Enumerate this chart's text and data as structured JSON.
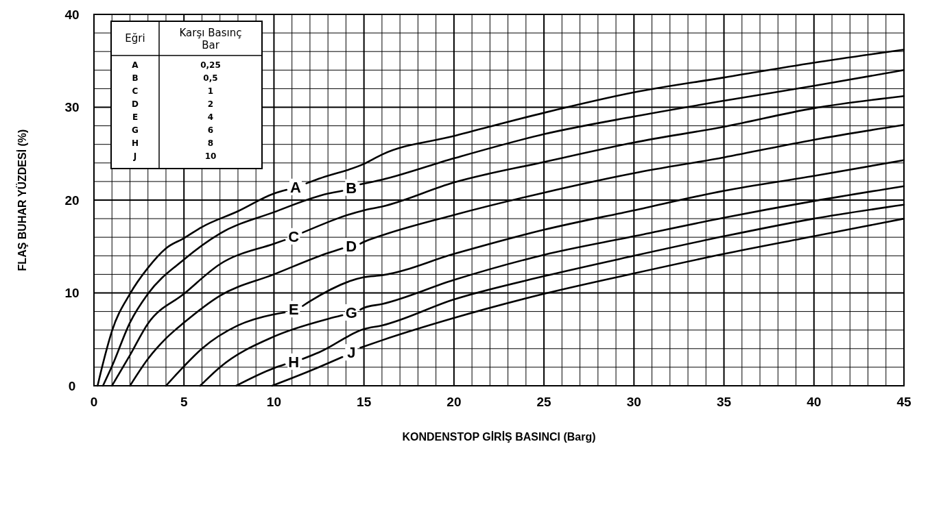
{
  "chart_data": {
    "type": "line",
    "xlabel": "KONDENSTOP GİRİŞ BASINCI  (Barg)",
    "ylabel": "FLAŞ BUHAR  YÜZDESİ  (%)",
    "annotations": [
      "Eğri",
      "Karşı Basınç Bar",
      "A",
      "0,25",
      "B",
      "0,5",
      "C",
      "1",
      "D",
      "2",
      "E",
      "4",
      "G",
      "6",
      "H",
      "8",
      "J",
      "10"
    ],
    "xlim": [
      0,
      45
    ],
    "ylim": [
      0,
      40
    ],
    "xticks": [
      0,
      {
        "value": 1,
        "label": null
      },
      {
        "value": 2,
        "label": null
      },
      {
        "value": 3,
        "label": null
      },
      {
        "value": 4,
        "label": null
      },
      5,
      {
        "value": 6,
        "label": null
      },
      {
        "value": 7,
        "label": null
      },
      {
        "value": 8,
        "label": null
      },
      {
        "value": 9,
        "label": null
      },
      10,
      {
        "value": 11,
        "label": null
      },
      {
        "value": 12,
        "label": null
      },
      {
        "value": 13,
        "label": null
      },
      {
        "value": 14,
        "label": null
      },
      15,
      {
        "value": 16,
        "label": null
      },
      {
        "value": 17,
        "label": null
      },
      {
        "value": 18,
        "label": null
      },
      {
        "value": 19,
        "label": null
      },
      20,
      {
        "value": 21,
        "label": null
      },
      {
        "value": 22,
        "label": null
      },
      {
        "value": 23,
        "label": null
      },
      {
        "value": 24,
        "label": null
      },
      25,
      {
        "value": 26,
        "label": null
      },
      {
        "value": 27,
        "label": null
      },
      {
        "value": 28,
        "label": null
      },
      {
        "value": 29,
        "label": null
      },
      30,
      {
        "value": 31,
        "label": null
      },
      {
        "value": 32,
        "label": null
      },
      {
        "value": 33,
        "label": null
      },
      {
        "value": 34,
        "label": null
      },
      35,
      {
        "value": 36,
        "label": null
      },
      {
        "value": 37,
        "label": null
      },
      {
        "value": 38,
        "label": null
      },
      {
        "value": 39,
        "label": null
      },
      40,
      {
        "value": 41,
        "label": null
      },
      {
        "value": 42,
        "label": null
      },
      {
        "value": 43,
        "label": null
      },
      {
        "value": 44,
        "label": null
      },
      45
    ],
    "yticks": [
      0,
      {
        "value": 2,
        "label": null
      },
      {
        "value": 4,
        "label": null
      },
      {
        "value": 6,
        "label": null
      },
      {
        "value": 8,
        "label": null
      },
      10,
      {
        "value": 12,
        "label": null
      },
      {
        "value": 14,
        "label": null
      },
      {
        "value": 16,
        "label": null
      },
      {
        "value": 18,
        "label": null
      },
      20,
      {
        "value": 22,
        "label": null
      },
      {
        "value": 24,
        "label": null
      },
      {
        "value": 26,
        "label": null
      },
      {
        "value": 28,
        "label": null
      },
      30,
      {
        "value": 32,
        "label": null
      },
      {
        "value": 34,
        "label": null
      },
      {
        "value": 36,
        "label": null
      },
      {
        "value": 38,
        "label": null
      },
      40
    ],
    "grid": true,
    "marker": "none",
    "line_style": "solid",
    "series": [
      {
        "name": "A",
        "color": "#000000",
        "x": [
          0.2,
          0.5,
          1,
          2,
          3,
          4,
          5,
          6,
          8,
          10,
          10.7,
          11.2,
          11.8,
          12.5,
          15,
          16,
          20,
          25,
          30,
          35,
          40,
          45
        ],
        "values": [
          0,
          2.4,
          5.9,
          9.9,
          12.7,
          14.8,
          15.9,
          17.1,
          18.8,
          20.7,
          21.1,
          null,
          21.8,
          22.3,
          23.9,
          24.9,
          26.9,
          29.4,
          31.6,
          33.2,
          34.8,
          36.2
        ]
      },
      {
        "name": "B",
        "color": "#000000",
        "x": [
          0.5,
          1,
          2,
          3,
          5,
          7,
          10,
          13,
          13.8,
          14.3,
          14.8,
          16,
          20,
          25,
          30,
          35,
          40,
          45
        ],
        "values": [
          0,
          2.1,
          6.8,
          9.9,
          13.6,
          16.4,
          18.7,
          20.7,
          21,
          null,
          21.7,
          22.2,
          24.5,
          27.1,
          29,
          30.7,
          32.3,
          34
        ]
      },
      {
        "name": "C",
        "color": "#000000",
        "x": [
          1,
          2,
          3,
          5,
          7,
          10,
          10.6,
          11.1,
          11.6,
          15,
          16,
          20,
          25,
          30,
          35,
          40,
          45
        ],
        "values": [
          0,
          3.3,
          6.7,
          9.9,
          13.1,
          15.3,
          15.7,
          null,
          16.5,
          18.9,
          19.3,
          21.9,
          24.1,
          26.2,
          27.9,
          29.9,
          31.2
        ]
      },
      {
        "name": "D",
        "color": "#000000",
        "x": [
          2,
          3,
          4,
          5,
          7,
          10,
          13,
          13.8,
          14.3,
          14.8,
          15,
          16,
          20,
          25,
          30,
          35,
          40,
          45
        ],
        "values": [
          0,
          2.9,
          5.1,
          6.8,
          9.7,
          12,
          14.3,
          14.8,
          null,
          15.3,
          15.5,
          16.2,
          18.4,
          20.8,
          22.9,
          24.6,
          26.5,
          28.1
        ]
      },
      {
        "name": "E",
        "color": "#000000",
        "x": [
          4,
          5,
          6,
          8,
          10,
          10.6,
          11.1,
          11.6,
          12,
          15,
          16,
          20,
          25,
          30,
          35,
          40,
          45
        ],
        "values": [
          0,
          2.1,
          4,
          6.5,
          7.7,
          7.9,
          null,
          8.6,
          9.1,
          11.7,
          11.9,
          14.2,
          16.8,
          18.9,
          21,
          22.6,
          24.3
        ]
      },
      {
        "name": "G",
        "color": "#000000",
        "x": [
          5.9,
          7,
          10,
          13,
          13.8,
          14.3,
          14.8,
          15,
          16,
          20,
          25,
          30,
          35,
          40,
          45
        ],
        "values": [
          0,
          2,
          5.3,
          7.2,
          7.6,
          null,
          8.2,
          8.4,
          8.8,
          11.4,
          14.1,
          16.1,
          18.1,
          19.9,
          21.5
        ]
      },
      {
        "name": "H",
        "color": "#000000",
        "x": [
          7.9,
          10,
          10.6,
          11.1,
          11.6,
          12.5,
          15,
          16,
          20,
          25,
          30,
          35,
          40,
          45
        ],
        "values": [
          0,
          1.9,
          2.3,
          null,
          2.9,
          3.6,
          6.1,
          6.5,
          9.3,
          11.8,
          14,
          16.1,
          18,
          19.5
        ]
      },
      {
        "name": "J",
        "color": "#000000",
        "x": [
          9.9,
          12,
          13.8,
          14.3,
          14.8,
          16,
          20,
          25,
          30,
          35,
          40,
          45
        ],
        "values": [
          0,
          1.6,
          3.1,
          null,
          4.1,
          4.9,
          7.3,
          9.9,
          12.1,
          14.2,
          16.1,
          18
        ]
      }
    ]
  }
}
